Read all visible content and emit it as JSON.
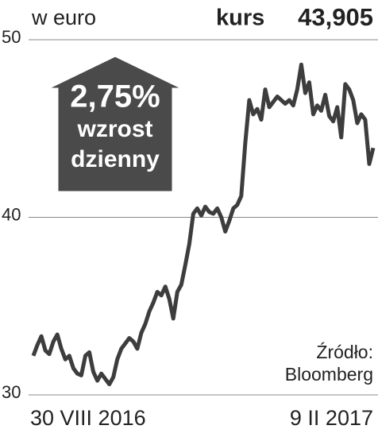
{
  "header": {
    "unit": "w euro",
    "price_label": "kurs",
    "price": "43,905"
  },
  "badge": {
    "change": "2,75%",
    "line1": "wzrost",
    "line2": "dzienny"
  },
  "source": {
    "label": "Źródło:",
    "name": "Bloomberg"
  },
  "chart_data": {
    "type": "line",
    "categories": [
      "30 VIII 2016",
      null,
      null,
      null,
      null,
      null,
      null,
      null,
      null,
      null,
      null,
      null,
      null,
      null,
      null,
      null,
      null,
      null,
      null,
      null,
      null,
      null,
      null,
      null,
      null,
      null,
      null,
      null,
      null,
      null,
      null,
      null,
      null,
      null,
      null,
      null,
      null,
      null,
      null,
      null,
      null,
      null,
      null,
      null,
      null,
      null,
      null,
      null,
      null,
      null,
      null,
      null,
      null,
      null,
      null,
      null,
      null,
      null,
      null,
      null,
      null,
      null,
      null,
      null,
      null,
      null,
      null,
      null,
      null,
      null,
      null,
      null,
      null,
      null,
      null,
      null,
      null,
      null,
      null,
      null,
      null,
      null,
      null,
      null,
      null,
      "9 II 2017"
    ],
    "series": [
      {
        "color": "#3d3d3d",
        "values": [
          32.2,
          32.8,
          33.3,
          32.5,
          32.3,
          33.0,
          33.4,
          32.6,
          32.0,
          32.2,
          31.5,
          31.2,
          31.1,
          32.2,
          32.4,
          31.3,
          30.8,
          31.2,
          30.9,
          30.6,
          31.0,
          32.0,
          32.6,
          32.9,
          33.2,
          33.0,
          32.6,
          33.5,
          34.0,
          34.7,
          35.2,
          35.8,
          35.6,
          36.1,
          35.4,
          34.3,
          35.8,
          36.2,
          37.3,
          38.5,
          40.2,
          40.5,
          40.1,
          40.6,
          40.3,
          40.2,
          40.5,
          40.0,
          39.2,
          39.8,
          40.5,
          40.7,
          41.2,
          44.2,
          46.6,
          45.8,
          46.1,
          45.5,
          47.2,
          46.2,
          46.5,
          46.8,
          46.6,
          46.4,
          46.6,
          46.3,
          47.2,
          48.6,
          47.0,
          47.6,
          45.8,
          46.3,
          46.0,
          46.9,
          45.7,
          45.4,
          46.2,
          44.5,
          47.5,
          47.2,
          46.6,
          45.3,
          45.8,
          45.5,
          43.0,
          43.905
        ]
      }
    ],
    "ylim": [
      30,
      50
    ],
    "yticks": [
      30,
      40,
      50
    ],
    "grid": true
  }
}
